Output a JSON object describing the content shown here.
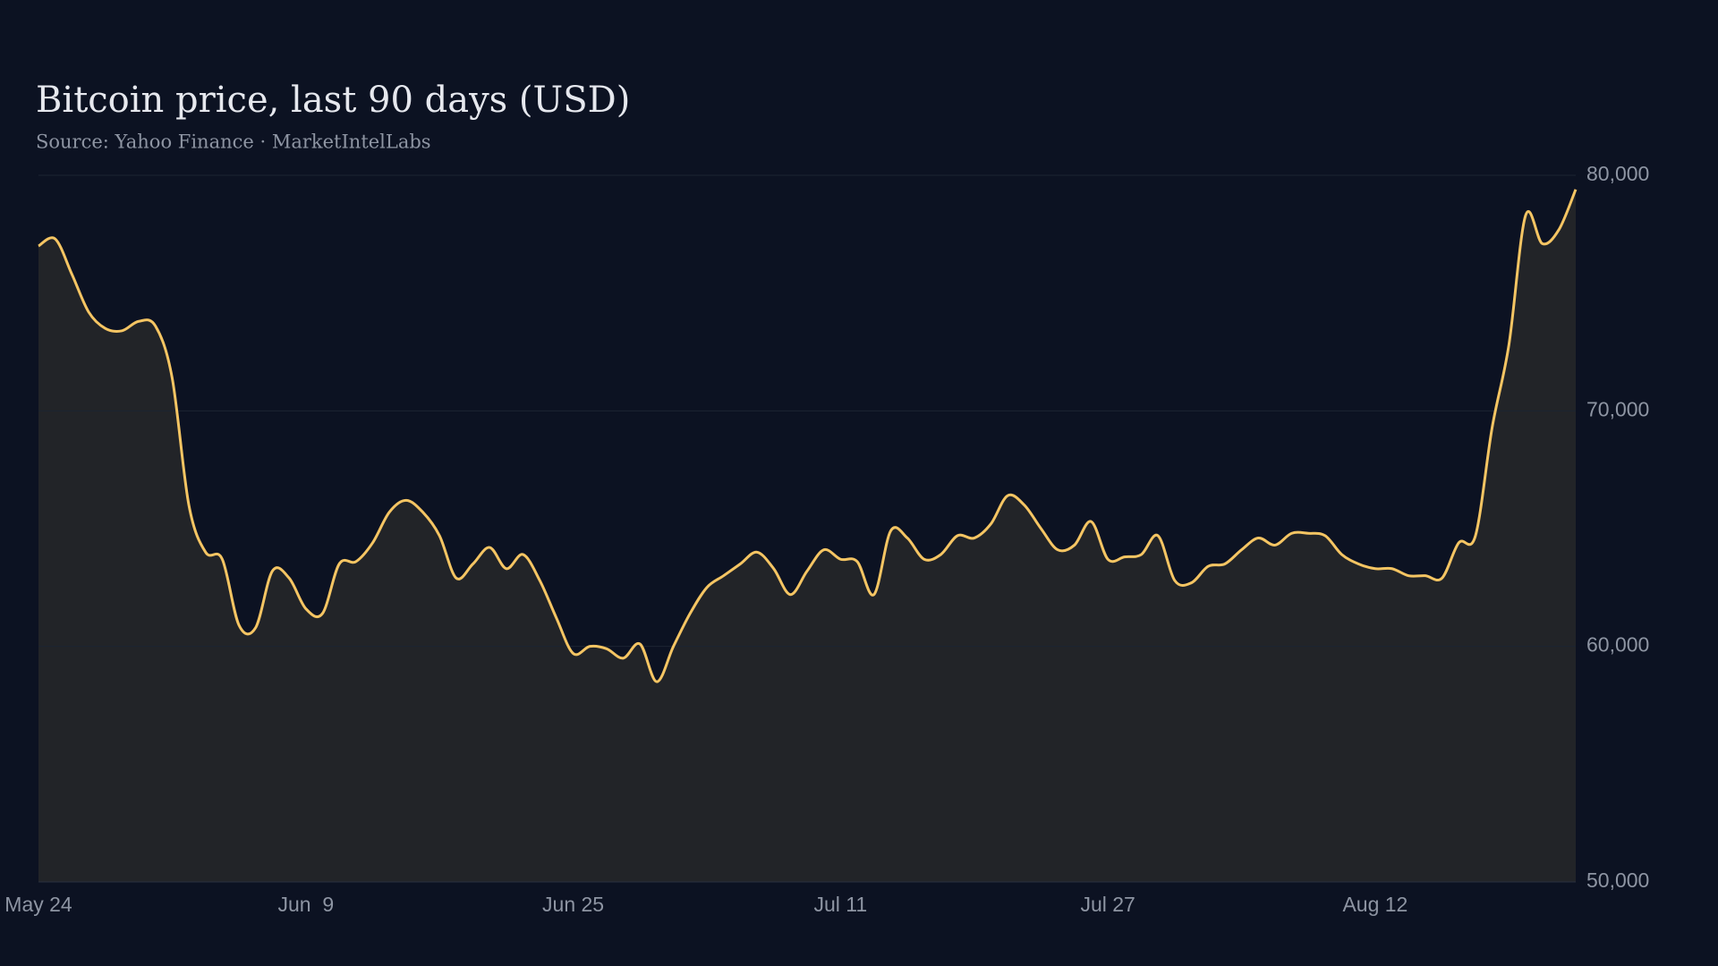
{
  "chart_data": {
    "type": "line",
    "title": "Bitcoin price, last 90 days (USD)",
    "subtitle": "Source: Yahoo Finance · MarketIntelLabs",
    "categories": [
      "May 24",
      null,
      null,
      null,
      null,
      null,
      null,
      null,
      null,
      null,
      null,
      null,
      null,
      null,
      null,
      null,
      "Jun  9",
      null,
      null,
      null,
      null,
      null,
      null,
      null,
      null,
      null,
      null,
      null,
      null,
      null,
      null,
      null,
      "Jun 25",
      null,
      null,
      null,
      null,
      null,
      null,
      null,
      null,
      null,
      null,
      null,
      null,
      null,
      null,
      null,
      "Jul 11",
      null,
      null,
      null,
      null,
      null,
      null,
      null,
      null,
      null,
      null,
      null,
      null,
      null,
      null,
      null,
      "Jul 27",
      null,
      null,
      null,
      null,
      null,
      null,
      null,
      null,
      null,
      null,
      null,
      null,
      null,
      null,
      null,
      "Aug 12",
      null,
      null,
      null,
      null,
      null,
      null,
      null,
      null,
      null,
      null,
      null,
      null
    ],
    "values": [
      77000,
      77300,
      75800,
      74200,
      73500,
      73400,
      73800,
      73600,
      71400,
      66000,
      64000,
      63700,
      60900,
      60800,
      63200,
      62900,
      61600,
      61400,
      63500,
      63600,
      64400,
      65700,
      66200,
      65700,
      64700,
      62900,
      63500,
      64200,
      63300,
      63900,
      62800,
      61200,
      59700,
      60000,
      59900,
      59500,
      60100,
      58500,
      60000,
      61400,
      62500,
      63000,
      63500,
      64000,
      63300,
      62200,
      63200,
      64100,
      63700,
      63600,
      62200,
      64900,
      64600,
      63700,
      63900,
      64700,
      64600,
      65200,
      66400,
      66000,
      65000,
      64100,
      64300,
      65300,
      63700,
      63800,
      63900,
      64700,
      62800,
      62700,
      63400,
      63500,
      64100,
      64600,
      64300,
      64800,
      64800,
      64700,
      63900,
      63500,
      63300,
      63300,
      63000,
      63000,
      62900,
      64400,
      64700,
      69300,
      72800,
      78300,
      77100,
      77700,
      79400
    ],
    "color": "#f5c563",
    "area_color": "#222428",
    "ylim": [
      50000,
      80000
    ],
    "yticks": [
      {
        "value": 50000,
        "label": "50,000"
      },
      {
        "value": 60000,
        "label": "60,000"
      },
      {
        "value": 70000,
        "label": "70,000"
      },
      {
        "value": 80000,
        "label": "80,000"
      }
    ],
    "grid": true
  }
}
